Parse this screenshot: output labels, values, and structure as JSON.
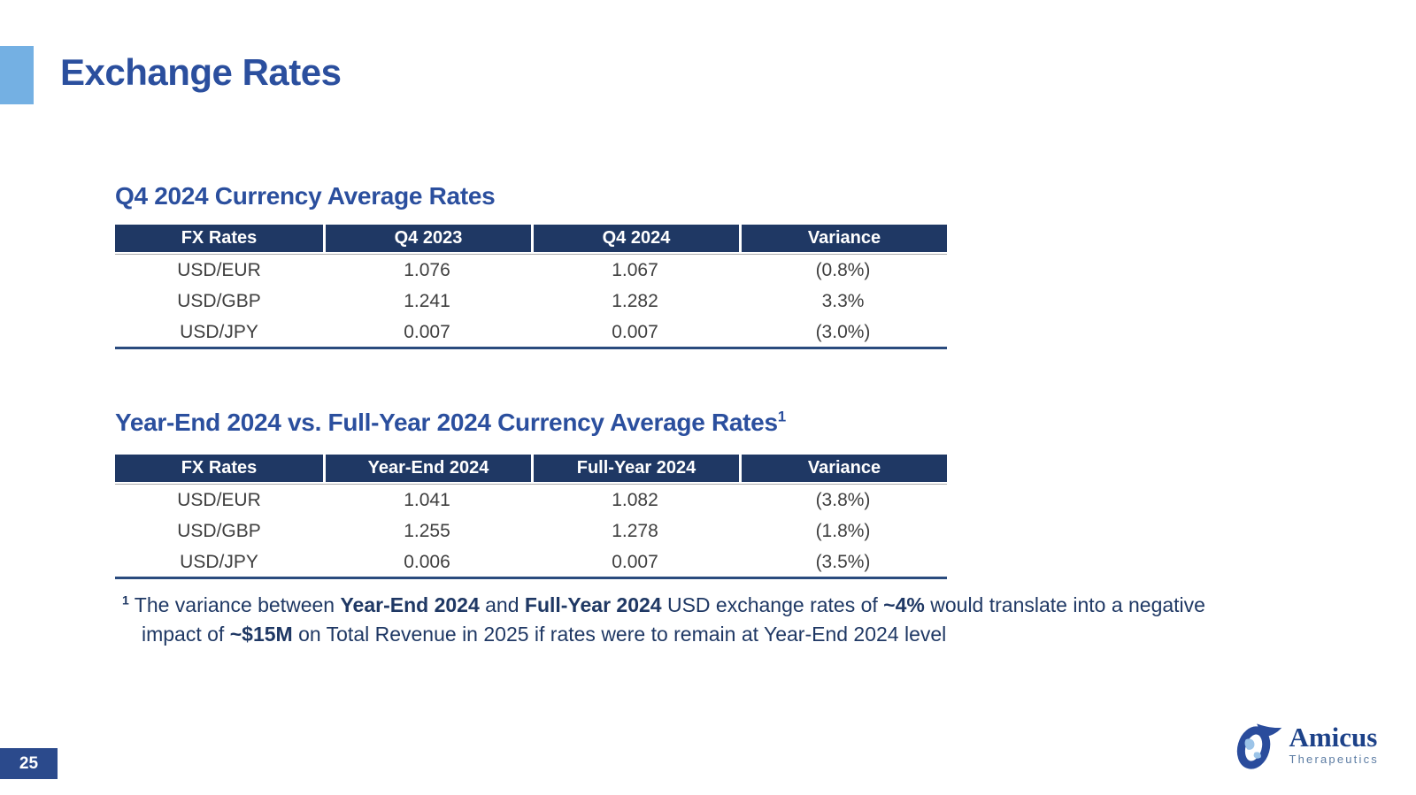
{
  "slide": {
    "title": "Exchange Rates",
    "page_number": "25"
  },
  "tables": [
    {
      "title": "Q4 2024 Currency Average Rates",
      "title_superscript": "",
      "columns": [
        "FX Rates",
        "Q4 2023",
        "Q4 2024",
        "Variance"
      ],
      "rows": [
        [
          "USD/EUR",
          "1.076",
          "1.067",
          "(0.8%)"
        ],
        [
          "USD/GBP",
          "1.241",
          "1.282",
          "3.3%"
        ],
        [
          "USD/JPY",
          "0.007",
          "0.007",
          "(3.0%)"
        ]
      ]
    },
    {
      "title": "Year-End 2024 vs. Full-Year 2024 Currency Average Rates",
      "title_superscript": "1",
      "columns": [
        "FX Rates",
        "Year-End 2024",
        "Full-Year 2024",
        "Variance"
      ],
      "rows": [
        [
          "USD/EUR",
          "1.041",
          "1.082",
          "(3.8%)"
        ],
        [
          "USD/GBP",
          "1.255",
          "1.278",
          "(1.8%)"
        ],
        [
          "USD/JPY",
          "0.006",
          "0.007",
          "(3.5%)"
        ]
      ]
    }
  ],
  "footnote": {
    "superscript": "1",
    "segments": [
      {
        "text": " The variance between ",
        "bold": false
      },
      {
        "text": "Year-End 2024",
        "bold": true
      },
      {
        "text": " and ",
        "bold": false
      },
      {
        "text": "Full-Year 2024",
        "bold": true
      },
      {
        "text": " USD exchange rates of ",
        "bold": false
      },
      {
        "text": "~4%",
        "bold": true
      },
      {
        "text": " would translate into a negative impact of ",
        "bold": false
      },
      {
        "text": "~$15M",
        "bold": true
      },
      {
        "text": " on Total Revenue in 2025 if rates were to remain at Year-End 2024 level",
        "bold": false
      }
    ]
  },
  "logo": {
    "name": "Amicus",
    "subtext": "Therapeutics"
  },
  "colors": {
    "title_blue": "#2b4f9e",
    "accent_light_blue": "#74b0e3",
    "table_header_navy": "#1f3864",
    "table_bottom_rule": "#2a4b7e",
    "body_text": "#3f3f3f",
    "footnote_navy": "#1f3864",
    "page_box_blue": "#2b4a8c",
    "logo_dark_blue": "#1d4289",
    "logo_light_blue": "#9cc4e8",
    "logo_gray_blue": "#5c7ca3"
  }
}
